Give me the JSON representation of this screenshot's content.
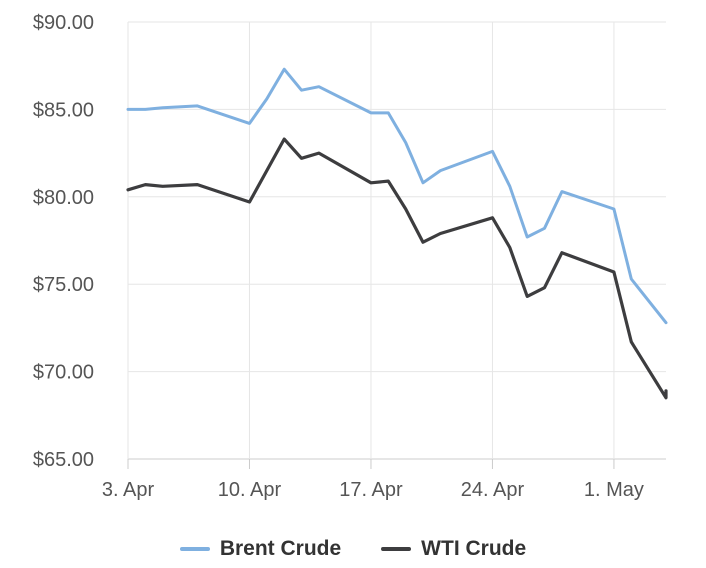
{
  "chart_data": {
    "type": "line",
    "title": "",
    "xlabel": "",
    "ylabel": "",
    "ylim": [
      65,
      90
    ],
    "y_ticks": [
      65,
      70,
      75,
      80,
      85,
      90
    ],
    "y_tick_labels": [
      "$65.00",
      "$70.00",
      "$75.00",
      "$80.00",
      "$85.00",
      "$90.00"
    ],
    "x_ticks": [
      "2023-04-03",
      "2023-04-10",
      "2023-04-17",
      "2023-04-24",
      "2023-05-01"
    ],
    "x_tick_labels": [
      "3. Apr",
      "10. Apr",
      "17. Apr",
      "24. Apr",
      "1. May"
    ],
    "xlim": [
      "2023-04-03",
      "2023-05-04"
    ],
    "grid": true,
    "legend_position": "bottom",
    "series": [
      {
        "name": "Brent Crude",
        "color": "#7fb0e0",
        "points": [
          [
            "2023-04-03",
            85.0
          ],
          [
            "2023-04-04",
            85.0
          ],
          [
            "2023-04-05",
            85.1
          ],
          [
            "2023-04-07",
            85.2
          ],
          [
            "2023-04-10",
            84.2
          ],
          [
            "2023-04-11",
            85.6
          ],
          [
            "2023-04-12",
            87.3
          ],
          [
            "2023-04-13",
            86.1
          ],
          [
            "2023-04-14",
            86.3
          ],
          [
            "2023-04-17",
            84.8
          ],
          [
            "2023-04-18",
            84.8
          ],
          [
            "2023-04-19",
            83.1
          ],
          [
            "2023-04-20",
            80.8
          ],
          [
            "2023-04-21",
            81.5
          ],
          [
            "2023-04-24",
            82.6
          ],
          [
            "2023-04-25",
            80.6
          ],
          [
            "2023-04-26",
            77.7
          ],
          [
            "2023-04-27",
            78.2
          ],
          [
            "2023-04-28",
            80.3
          ],
          [
            "2023-05-01",
            79.3
          ],
          [
            "2023-05-02",
            75.3
          ],
          [
            "2023-05-04",
            72.8
          ]
        ]
      },
      {
        "name": "WTI Crude",
        "color": "#3d3d3f",
        "points": [
          [
            "2023-04-03",
            80.4
          ],
          [
            "2023-04-04",
            80.7
          ],
          [
            "2023-04-05",
            80.6
          ],
          [
            "2023-04-07",
            80.7
          ],
          [
            "2023-04-10",
            79.7
          ],
          [
            "2023-04-11",
            81.5
          ],
          [
            "2023-04-12",
            83.3
          ],
          [
            "2023-04-13",
            82.2
          ],
          [
            "2023-04-14",
            82.5
          ],
          [
            "2023-04-17",
            80.8
          ],
          [
            "2023-04-18",
            80.9
          ],
          [
            "2023-04-19",
            79.3
          ],
          [
            "2023-04-20",
            77.4
          ],
          [
            "2023-04-21",
            77.9
          ],
          [
            "2023-04-24",
            78.8
          ],
          [
            "2023-04-25",
            77.1
          ],
          [
            "2023-04-26",
            74.3
          ],
          [
            "2023-04-27",
            74.8
          ],
          [
            "2023-04-28",
            76.8
          ],
          [
            "2023-05-01",
            75.7
          ],
          [
            "2023-05-02",
            71.7
          ],
          [
            "2023-05-04",
            68.5
          ],
          [
            "2023-05-04",
            68.9
          ]
        ]
      }
    ]
  }
}
